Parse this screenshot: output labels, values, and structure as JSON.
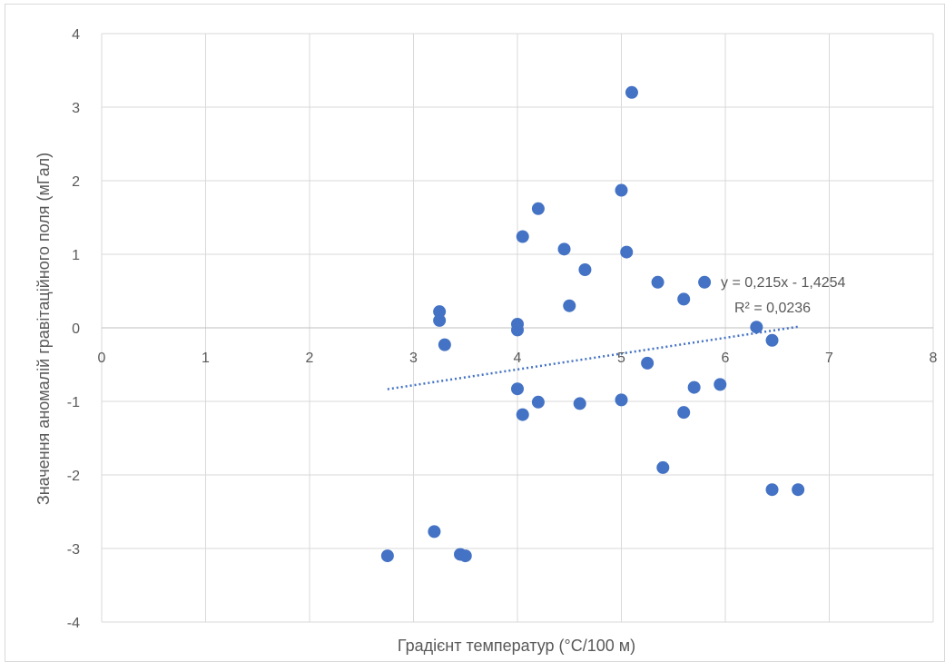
{
  "chart_data": {
    "type": "scatter",
    "title": "",
    "xlabel": "Градієнт температур (°C/100 м)",
    "ylabel": "Значення аномалій гравітаційного поля (мГал)",
    "xlim": [
      0,
      8
    ],
    "ylim": [
      -4,
      4
    ],
    "x_ticks": [
      "0",
      "1",
      "2",
      "3",
      "4",
      "5",
      "6",
      "7",
      "8"
    ],
    "y_ticks": [
      "-4",
      "-3",
      "-2",
      "-1",
      "0",
      "1",
      "2",
      "3",
      "4"
    ],
    "grid": true,
    "legend": "none",
    "point_color": "#4472C4",
    "trendline_color": "#4472C4",
    "points": [
      {
        "x": 2.75,
        "y": -3.1
      },
      {
        "x": 3.2,
        "y": -2.77
      },
      {
        "x": 3.45,
        "y": -3.08
      },
      {
        "x": 3.5,
        "y": -3.1
      },
      {
        "x": 3.25,
        "y": 0.22
      },
      {
        "x": 3.25,
        "y": 0.1
      },
      {
        "x": 3.3,
        "y": -0.23
      },
      {
        "x": 4.0,
        "y": 0.05
      },
      {
        "x": 4.0,
        "y": -0.03
      },
      {
        "x": 4.0,
        "y": -0.83
      },
      {
        "x": 4.05,
        "y": -1.18
      },
      {
        "x": 4.05,
        "y": 1.24
      },
      {
        "x": 4.2,
        "y": 1.62
      },
      {
        "x": 4.2,
        "y": -1.01
      },
      {
        "x": 4.45,
        "y": 1.07
      },
      {
        "x": 4.5,
        "y": 0.3
      },
      {
        "x": 4.6,
        "y": -1.03
      },
      {
        "x": 4.65,
        "y": 0.79
      },
      {
        "x": 5.0,
        "y": 1.87
      },
      {
        "x": 5.0,
        "y": -0.98
      },
      {
        "x": 5.05,
        "y": 1.03
      },
      {
        "x": 5.1,
        "y": 3.2
      },
      {
        "x": 5.25,
        "y": -0.48
      },
      {
        "x": 5.35,
        "y": 0.62
      },
      {
        "x": 5.4,
        "y": -1.9
      },
      {
        "x": 5.6,
        "y": 0.39
      },
      {
        "x": 5.6,
        "y": -1.15
      },
      {
        "x": 5.7,
        "y": -0.81
      },
      {
        "x": 5.8,
        "y": 0.62
      },
      {
        "x": 5.95,
        "y": -0.77
      },
      {
        "x": 6.3,
        "y": 0.01
      },
      {
        "x": 6.45,
        "y": -0.17
      },
      {
        "x": 6.45,
        "y": -2.2
      },
      {
        "x": 6.7,
        "y": -2.2
      }
    ],
    "trendline": {
      "type": "linear",
      "slope": 0.215,
      "intercept": -1.4254,
      "x_range": [
        2.75,
        6.7
      ],
      "equation": "y = 0,215x - 1,4254",
      "r2": "R² = 0,0236"
    }
  }
}
